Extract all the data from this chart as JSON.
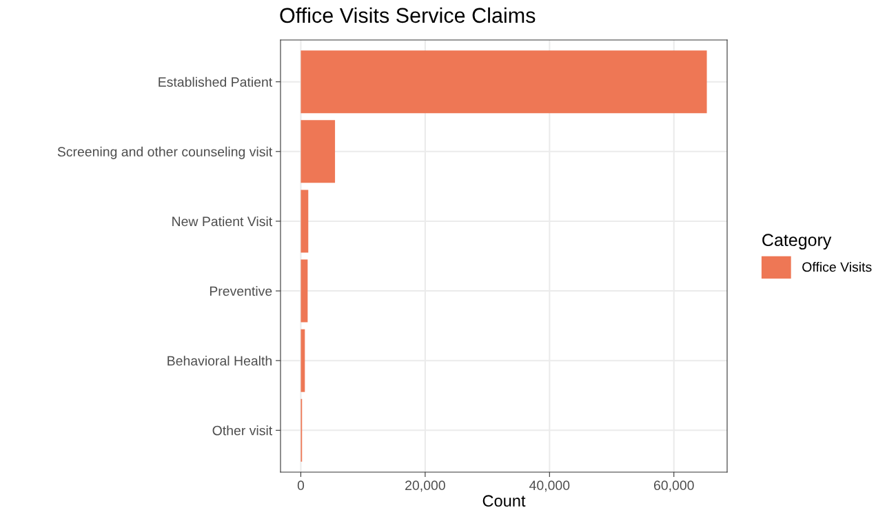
{
  "chart_data": {
    "type": "bar",
    "orientation": "horizontal",
    "title": "Office Visits Service Claims",
    "xlabel": "Count",
    "legend_title": "Category",
    "categories": [
      "Established Patient",
      "Screening and other counseling visit",
      "New Patient Visit",
      "Preventive",
      "Behavioral Health",
      "Other visit"
    ],
    "series": [
      {
        "name": "Office Visits",
        "color": "#ee7755",
        "values": [
          65300,
          5500,
          1200,
          1100,
          650,
          200
        ]
      }
    ],
    "xlim": [
      -3265,
      68565
    ],
    "xticks": [
      {
        "value": 0,
        "label": "0"
      },
      {
        "value": 20000,
        "label": "20,000"
      },
      {
        "value": 40000,
        "label": "40,000"
      },
      {
        "value": 60000,
        "label": "60,000"
      }
    ],
    "grid": true,
    "legend": "right"
  }
}
